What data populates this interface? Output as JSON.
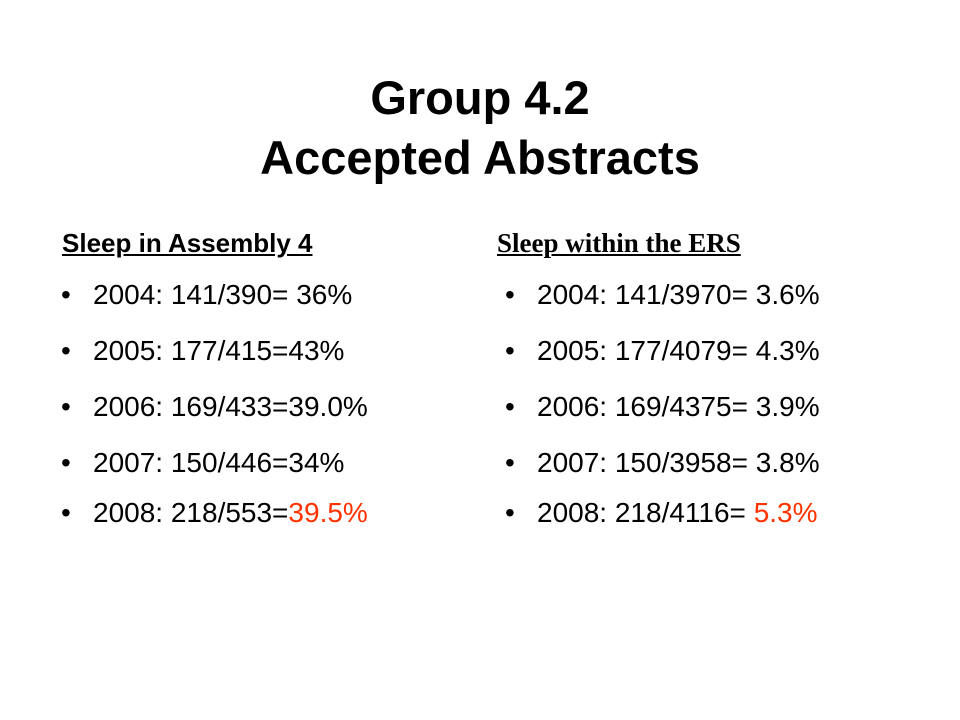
{
  "title": {
    "line1": "Group 4.2",
    "line2": "Accepted Abstracts"
  },
  "columns": [
    {
      "heading": "Sleep in Assembly 4",
      "items": [
        {
          "text": "2004: 141/390= 36%"
        },
        {
          "text": "2005: 177/415=43%"
        },
        {
          "text": "2006: 169/433=39.0%"
        },
        {
          "text": "2007: 150/446=34%"
        },
        {
          "text": "2008: 218/553=",
          "highlight": "39.5%"
        }
      ]
    },
    {
      "heading": "Sleep within the ERS",
      "items": [
        {
          "text": "2004: 141/3970= 3.6%"
        },
        {
          "text": "2005: 177/4079= 4.3%"
        },
        {
          "text": "2006: 169/4375= 3.9%"
        },
        {
          "text": "2007: 150/3958= 3.8%"
        },
        {
          "text": "2008: 218/4116= ",
          "highlight": "5.3%"
        }
      ]
    }
  ]
}
